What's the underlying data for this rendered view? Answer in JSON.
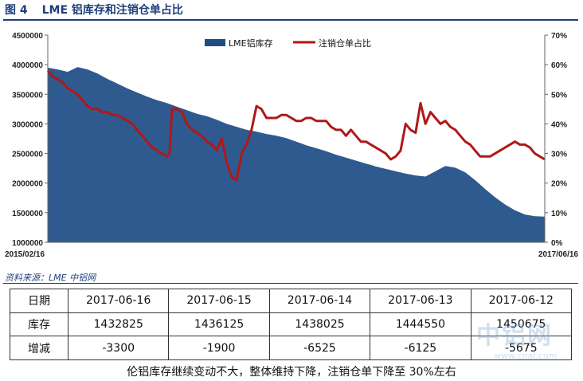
{
  "figure": {
    "number": "图 4",
    "title": "LME 铝库存和注销仓单占比"
  },
  "chart_data": {
    "type": "area+line",
    "title": "LME 铝库存和注销仓单占比",
    "legend_position": "top-center",
    "x_start": "2015/02/16",
    "x_end": "2017/06/16",
    "y_left": {
      "min": 1000000,
      "max": 4500000,
      "ticks": [
        "4500000",
        "4000000",
        "3500000",
        "3000000",
        "2500000",
        "2000000",
        "1500000",
        "1000000"
      ]
    },
    "y_right": {
      "min": 0,
      "max": 70,
      "ticks": [
        "70%",
        "60%",
        "50%",
        "40%",
        "30%",
        "20%",
        "10%",
        "0%"
      ]
    },
    "series": [
      {
        "name": "LME铝库存",
        "type": "area",
        "color": "#1f4e86",
        "x": [
          0,
          0.02,
          0.04,
          0.06,
          0.08,
          0.1,
          0.12,
          0.14,
          0.16,
          0.18,
          0.2,
          0.22,
          0.24,
          0.26,
          0.28,
          0.3,
          0.32,
          0.34,
          0.36,
          0.38,
          0.4,
          0.42,
          0.44,
          0.46,
          0.48,
          0.5,
          0.52,
          0.54,
          0.56,
          0.58,
          0.6,
          0.62,
          0.64,
          0.66,
          0.68,
          0.7,
          0.72,
          0.74,
          0.76,
          0.78,
          0.8,
          0.82,
          0.84,
          0.86,
          0.88,
          0.9,
          0.92,
          0.94,
          0.96,
          0.98,
          1.0
        ],
        "values": [
          3950000,
          3920000,
          3880000,
          3960000,
          3920000,
          3850000,
          3760000,
          3680000,
          3600000,
          3530000,
          3460000,
          3400000,
          3350000,
          3290000,
          3230000,
          3170000,
          3130000,
          3070000,
          3000000,
          2950000,
          2900000,
          2870000,
          2830000,
          2800000,
          2760000,
          2700000,
          2640000,
          2590000,
          2540000,
          2480000,
          2430000,
          2380000,
          2330000,
          2280000,
          2240000,
          2200000,
          2160000,
          2130000,
          2110000,
          2200000,
          2290000,
          2260000,
          2180000,
          2050000,
          1900000,
          1760000,
          1640000,
          1540000,
          1470000,
          1440000,
          1432825
        ]
      },
      {
        "name": "注销仓单占比",
        "type": "line",
        "color": "#b01818",
        "x": [
          0,
          0.01,
          0.02,
          0.03,
          0.04,
          0.05,
          0.06,
          0.07,
          0.08,
          0.09,
          0.1,
          0.11,
          0.12,
          0.13,
          0.14,
          0.15,
          0.16,
          0.17,
          0.18,
          0.19,
          0.2,
          0.21,
          0.22,
          0.23,
          0.24,
          0.245,
          0.25,
          0.26,
          0.27,
          0.28,
          0.29,
          0.3,
          0.31,
          0.32,
          0.33,
          0.34,
          0.35,
          0.36,
          0.37,
          0.38,
          0.39,
          0.4,
          0.41,
          0.42,
          0.43,
          0.44,
          0.45,
          0.46,
          0.47,
          0.48,
          0.49,
          0.5,
          0.51,
          0.52,
          0.53,
          0.54,
          0.55,
          0.56,
          0.57,
          0.58,
          0.59,
          0.6,
          0.61,
          0.62,
          0.63,
          0.64,
          0.65,
          0.66,
          0.67,
          0.68,
          0.69,
          0.7,
          0.71,
          0.72,
          0.73,
          0.74,
          0.75,
          0.76,
          0.77,
          0.78,
          0.79,
          0.8,
          0.81,
          0.82,
          0.83,
          0.84,
          0.85,
          0.86,
          0.87,
          0.88,
          0.89,
          0.9,
          0.91,
          0.92,
          0.93,
          0.94,
          0.95,
          0.96,
          0.97,
          0.98,
          0.99,
          1.0
        ],
        "values": [
          58,
          56,
          55,
          54,
          52,
          51,
          50,
          48,
          46,
          45,
          45,
          44,
          44,
          43,
          43,
          42,
          41,
          40,
          38,
          36,
          34,
          32,
          31,
          30,
          29,
          30,
          45,
          45,
          44,
          40,
          38,
          37,
          36,
          34,
          33,
          31,
          35,
          27,
          22,
          21,
          30,
          33,
          38,
          46,
          45,
          42,
          42,
          42,
          43,
          43,
          42,
          41,
          41,
          42,
          42,
          41,
          41,
          41,
          39,
          38,
          38,
          36,
          38,
          36,
          34,
          34,
          33,
          32,
          31,
          30,
          28,
          29,
          31,
          40,
          38,
          37,
          47,
          40,
          44,
          42,
          40,
          41,
          39,
          38,
          36,
          34,
          33,
          31,
          29,
          29,
          29,
          30,
          31,
          32,
          33,
          34,
          33,
          33,
          32,
          30,
          29,
          28
        ]
      }
    ]
  },
  "watermark": {
    "text": "CNAL",
    "stamp_main": "中铝网",
    "stamp_sub": "www.cnal.com"
  },
  "source": "资料来源：LME   中铝网",
  "table": {
    "rows": [
      {
        "label": "日期",
        "cells": [
          "2017-06-16",
          "2017-06-15",
          "2017-06-14",
          "2017-06-13",
          "2017-06-12"
        ]
      },
      {
        "label": "库存",
        "cells": [
          "1432825",
          "1436125",
          "1438025",
          "1444550",
          "1450675"
        ]
      },
      {
        "label": "增减",
        "cells": [
          "-3300",
          "-1900",
          "-6525",
          "-6125",
          "-5675"
        ]
      }
    ]
  },
  "caption": "伦铝库存继续变动不大，整体维持下降，注销仓单下降至 30%左右"
}
